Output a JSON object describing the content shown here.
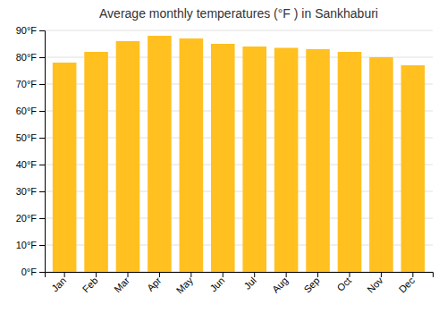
{
  "chart_data": {
    "type": "bar",
    "title": "Average monthly temperatures (°F ) in Sankhaburi",
    "categories": [
      "Jan",
      "Feb",
      "Mar",
      "Apr",
      "May",
      "Jun",
      "Jul",
      "Aug",
      "Sep",
      "Oct",
      "Nov",
      "Dec"
    ],
    "values": [
      78,
      82,
      86,
      88,
      87,
      85,
      84,
      83.5,
      83,
      82,
      80,
      77
    ],
    "color": "#FFC020",
    "ylim": [
      0,
      90
    ],
    "yticks": [
      {
        "value": 0,
        "label": "0°F"
      },
      {
        "value": 10,
        "label": "10°F"
      },
      {
        "value": 20,
        "label": "20°F"
      },
      {
        "value": 30,
        "label": "30°F"
      },
      {
        "value": 40,
        "label": "40°F"
      },
      {
        "value": 50,
        "label": "50°F"
      },
      {
        "value": 60,
        "label": "60°F"
      },
      {
        "value": 70,
        "label": "70°F"
      },
      {
        "value": 80,
        "label": "80°F"
      },
      {
        "value": 90,
        "label": "90°F"
      }
    ],
    "grid": true
  }
}
